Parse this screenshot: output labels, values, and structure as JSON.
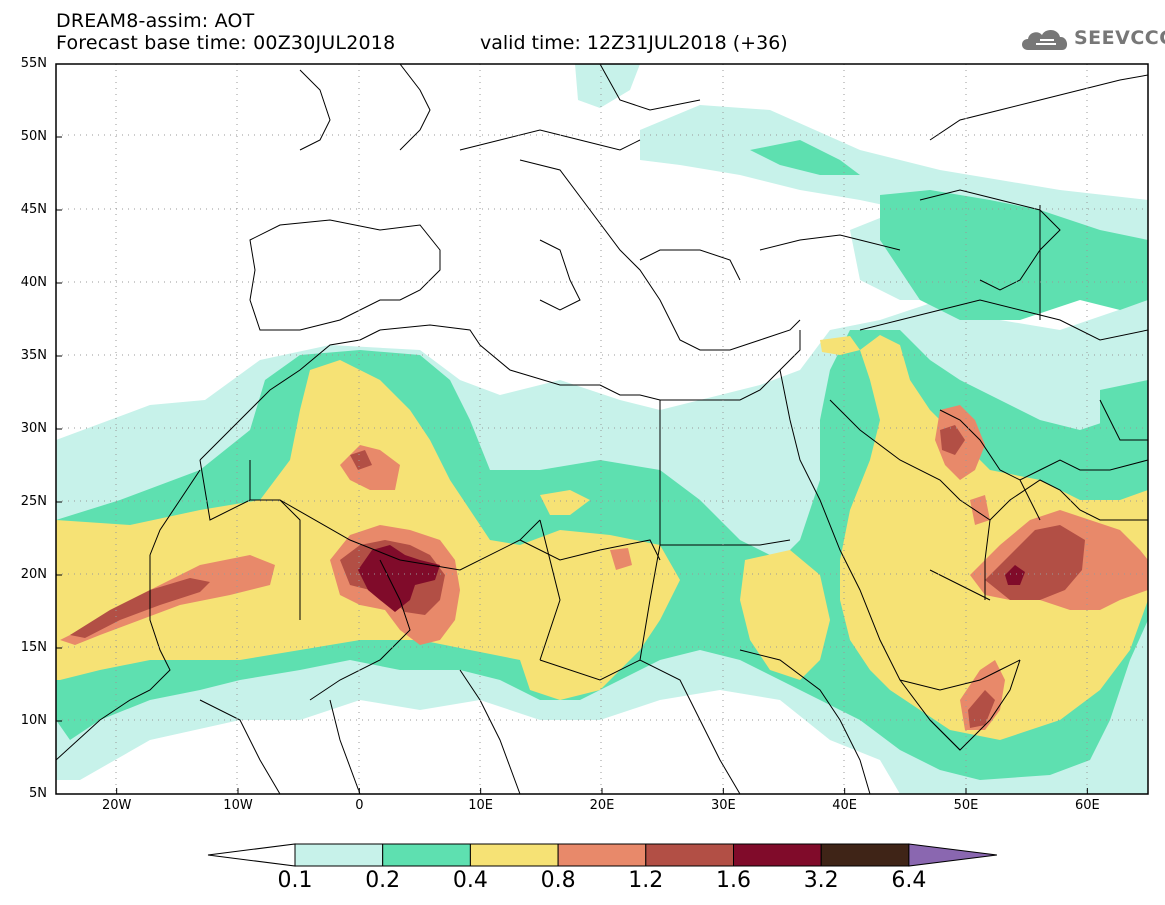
{
  "header": {
    "title": "DREAM8-assim: AOT",
    "base_time": "Forecast base time: 00Z30JUL2018",
    "valid_time": "valid time: 12Z31JUL2018 (+36)",
    "logo_text": "SEEVCCC"
  },
  "axes": {
    "lat_labels": [
      "55N",
      "50N",
      "45N",
      "40N",
      "35N",
      "30N",
      "25N",
      "20N",
      "15N",
      "10N",
      "5N"
    ],
    "lon_labels": [
      "20W",
      "10W",
      "0",
      "10E",
      "20E",
      "30E",
      "40E",
      "50E",
      "60E"
    ],
    "lat_range": [
      5,
      55
    ],
    "lon_range": [
      -25,
      65
    ]
  },
  "legend": {
    "labels": [
      "0.1",
      "0.2",
      "0.4",
      "0.8",
      "1.2",
      "1.6",
      "3.2",
      "6.4"
    ],
    "colors": [
      "#c7f2ea",
      "#5ee0b0",
      "#f6e275",
      "#e8896a",
      "#b24f45",
      "#800b2a",
      "#3f2417",
      "#8a67b0"
    ]
  },
  "colors": {
    "c1": "#c7f2ea",
    "c2": "#5ee0b0",
    "c3": "#f6e275",
    "c4": "#e8896a",
    "c5": "#b24f45",
    "c6": "#800b2a"
  }
}
